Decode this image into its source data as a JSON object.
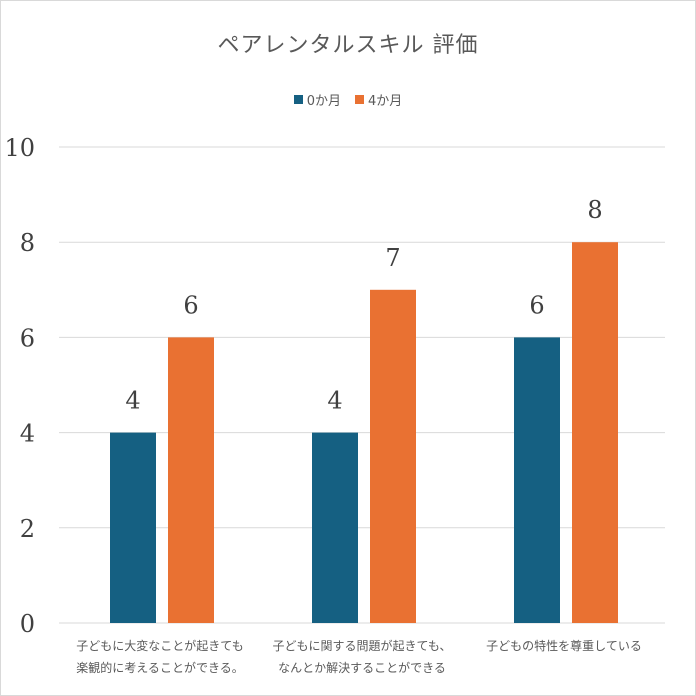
{
  "chart_data": {
    "type": "bar",
    "title": "ペアレンタルスキル 評価",
    "categories": [
      [
        "子どもに大変なことが起きても",
        "楽観的に考えることができる。"
      ],
      [
        "子どもに関する問題が起きても、",
        "なんとか解決することができる"
      ],
      [
        "子どもの特性を尊重している"
      ]
    ],
    "series": [
      {
        "name": "0か月",
        "color": "#156082",
        "values": [
          4,
          4,
          6
        ]
      },
      {
        "name": "4か月",
        "color": "#E97132",
        "values": [
          6,
          7,
          8
        ]
      }
    ],
    "ylim": [
      0,
      10
    ],
    "yticks": [
      "0",
      "2",
      "4",
      "6",
      "8",
      "10"
    ],
    "grid": true,
    "legend_position": "top",
    "data_labels": true
  }
}
